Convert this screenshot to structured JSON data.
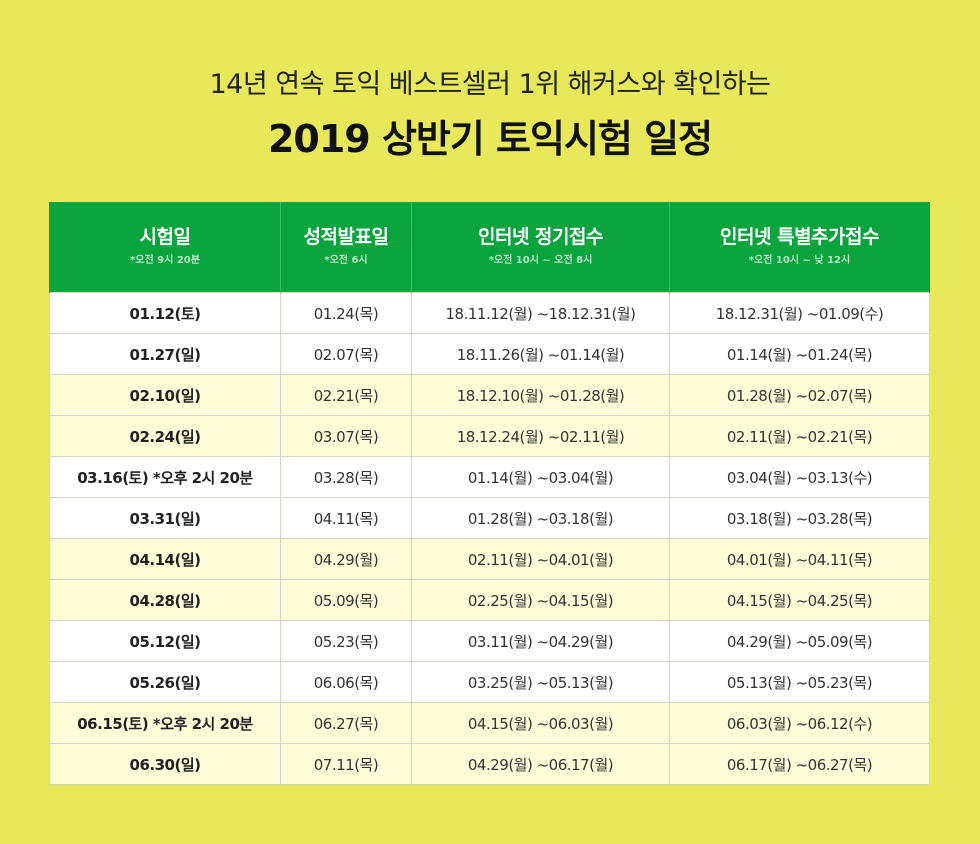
{
  "header": {
    "subtitle": "14년 연속 토익 베스트셀러 1위 해커스와 확인하는",
    "title": "2019 상반기 토익시험 일정"
  },
  "table": {
    "columns": [
      {
        "label": "시험일",
        "note": "*오전 9시 20분"
      },
      {
        "label": "성적발표일",
        "note": "*오전 6시"
      },
      {
        "label": "인터넷 정기접수",
        "note": "*오전 10시 ~ 오전 8시"
      },
      {
        "label": "인터넷 특별추가접수",
        "note": "*오전 10시 ~ 낮 12시"
      }
    ],
    "rows": [
      {
        "shade": "white",
        "exam_date": "01.12(토)",
        "result_date": "01.24(목)",
        "regular": "18.11.12(월) ~18.12.31(월)",
        "special": "18.12.31(월) ~01.09(수)"
      },
      {
        "shade": "white",
        "exam_date": "01.27(일)",
        "result_date": "02.07(목)",
        "regular": "18.11.26(월) ~01.14(월)",
        "special": "01.14(월) ~01.24(목)"
      },
      {
        "shade": "cream",
        "exam_date": "02.10(일)",
        "result_date": "02.21(목)",
        "regular": "18.12.10(월) ~01.28(월)",
        "special": "01.28(월) ~02.07(목)"
      },
      {
        "shade": "cream",
        "exam_date": "02.24(일)",
        "result_date": "03.07(목)",
        "regular": "18.12.24(월) ~02.11(월)",
        "special": "02.11(월) ~02.21(목)"
      },
      {
        "shade": "white",
        "exam_date": "03.16(토) *오후 2시 20분",
        "result_date": "03.28(목)",
        "regular": "01.14(월) ~03.04(월)",
        "special": "03.04(월) ~03.13(수)"
      },
      {
        "shade": "white",
        "exam_date": "03.31(일)",
        "result_date": "04.11(목)",
        "regular": "01.28(월) ~03.18(월)",
        "special": "03.18(월) ~03.28(목)"
      },
      {
        "shade": "cream",
        "exam_date": "04.14(일)",
        "result_date": "04.29(월)",
        "regular": "02.11(월) ~04.01(월)",
        "special": "04.01(월) ~04.11(목)"
      },
      {
        "shade": "cream",
        "exam_date": "04.28(일)",
        "result_date": "05.09(목)",
        "regular": "02.25(월) ~04.15(월)",
        "special": "04.15(월) ~04.25(목)"
      },
      {
        "shade": "white",
        "exam_date": "05.12(일)",
        "result_date": "05.23(목)",
        "regular": "03.11(월) ~04.29(월)",
        "special": "04.29(월) ~05.09(목)"
      },
      {
        "shade": "white",
        "exam_date": "05.26(일)",
        "result_date": "06.06(목)",
        "regular": "03.25(월) ~05.13(월)",
        "special": "05.13(월) ~05.23(목)"
      },
      {
        "shade": "cream",
        "exam_date": "06.15(토) *오후 2시 20분",
        "result_date": "06.27(목)",
        "regular": "04.15(월) ~06.03(월)",
        "special": "06.03(월) ~06.12(수)"
      },
      {
        "shade": "cream",
        "exam_date": "06.30(일)",
        "result_date": "07.11(목)",
        "regular": "04.29(월) ~06.17(월)",
        "special": "06.17(월) ~06.27(목)"
      }
    ]
  },
  "colors": {
    "background": "#e8e95a",
    "header_green": "#0aa43e",
    "row_white": "#ffffff",
    "row_cream": "#fdfdd8"
  }
}
